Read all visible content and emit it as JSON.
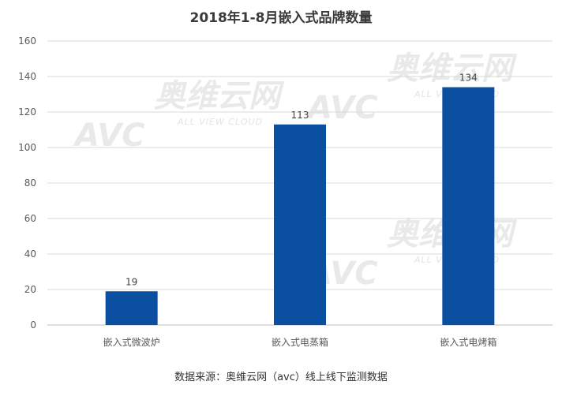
{
  "chart_data": {
    "type": "bar",
    "title": "2018年1-8月嵌入式品牌数量",
    "categories": [
      "嵌入式微波炉",
      "嵌入式电蒸箱",
      "嵌入式电烤箱"
    ],
    "values": [
      19,
      113,
      134
    ],
    "ylim": [
      0,
      160
    ],
    "yticks": [
      0,
      20,
      40,
      60,
      80,
      100,
      120,
      140,
      160
    ],
    "grid": true,
    "legend": "none",
    "bar_color": "#0b4fa0",
    "source": "数据来源：奥维云网（avc）线上线下监测数据"
  },
  "watermark": {
    "brand": "奥维云网",
    "logo": "AVC",
    "subtitle": "ALL VIEW CLOUD"
  }
}
